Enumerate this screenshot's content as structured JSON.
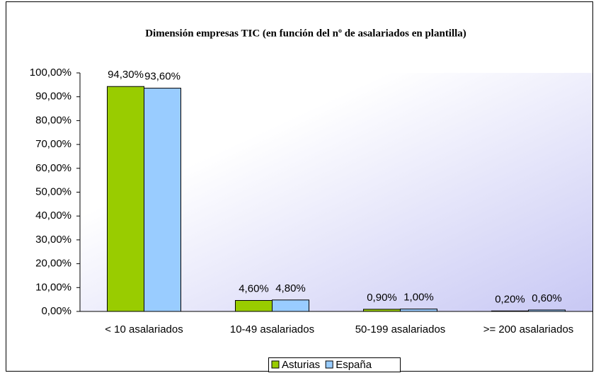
{
  "chart_data": {
    "type": "bar",
    "title": "Dimensión empresas TIC (en función del nº de asalariados en plantilla)",
    "categories": [
      "< 10 asalariados",
      "10-49 asalariados",
      "50-199 asalariados",
      ">= 200 asalariados"
    ],
    "series": [
      {
        "name": "Asturias",
        "color": "#99cc00",
        "values": [
          94.3,
          4.6,
          0.9,
          0.2
        ],
        "value_labels": [
          "94,30%",
          "4,60%",
          "0,90%",
          "0,20%"
        ]
      },
      {
        "name": "España",
        "color": "#99ccff",
        "values": [
          93.6,
          4.8,
          1.0,
          0.6
        ],
        "value_labels": [
          "93,60%",
          "4,80%",
          "1,00%",
          "0,60%"
        ]
      }
    ],
    "ylim": [
      0,
      100
    ],
    "yticks": [
      {
        "value": 0,
        "label": "0,00%"
      },
      {
        "value": 10,
        "label": "10,00%"
      },
      {
        "value": 20,
        "label": "20,00%"
      },
      {
        "value": 30,
        "label": "30,00%"
      },
      {
        "value": 40,
        "label": "40,00%"
      },
      {
        "value": 50,
        "label": "50,00%"
      },
      {
        "value": 60,
        "label": "60,00%"
      },
      {
        "value": 70,
        "label": "70,00%"
      },
      {
        "value": 80,
        "label": "80,00%"
      },
      {
        "value": 90,
        "label": "90,00%"
      },
      {
        "value": 100,
        "label": "100,00%"
      }
    ],
    "legend": "bottom"
  }
}
